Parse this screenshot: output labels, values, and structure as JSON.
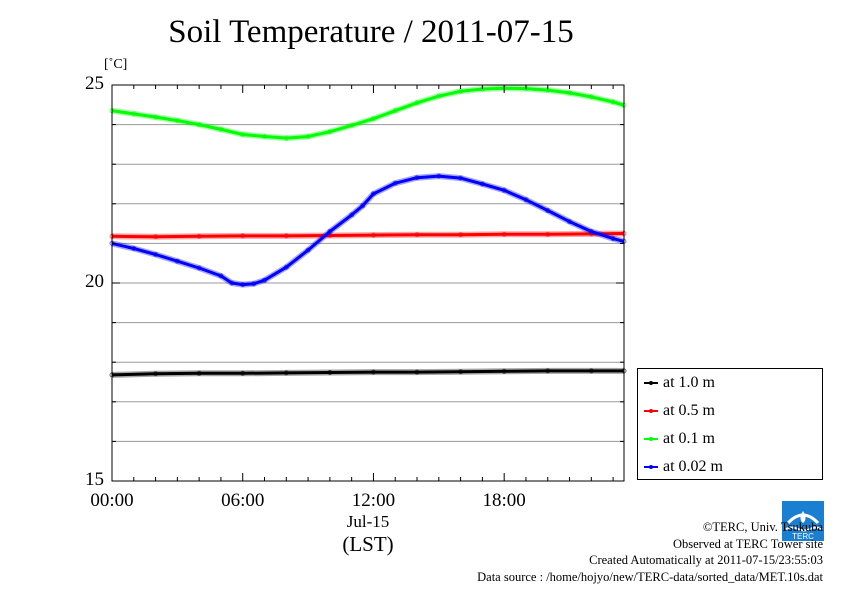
{
  "title": "Soil Temperature / 2011-07-15",
  "unit_label": "[˚C]",
  "x_date_label": "Jul-15",
  "x_zone_label": "(LST)",
  "legend_entries": [
    "at 1.0 m",
    "at 0.5 m",
    "at 0.1 m",
    "at 0.02 m"
  ],
  "credits": {
    "copyright": "©TERC, Univ. Tsukuba",
    "site": "Observed at TERC Tower site",
    "created": "Created Automatically at 2011-07-15/23:55:03",
    "source": "Data source : /home/hojyo/new/TERC-data/sorted_data/MET.10s.dat"
  },
  "logo_text": "TERC",
  "chart_data": {
    "type": "line",
    "title": "Soil Temperature / 2011-07-15",
    "xlabel": "Jul-15 (LST)",
    "ylabel": "[˚C]",
    "xlim": [
      0,
      23.5
    ],
    "ylim": [
      15,
      25
    ],
    "x_ticks": [
      0,
      6,
      12,
      18
    ],
    "x_tick_labels": [
      "00:00",
      "06:00",
      "12:00",
      "18:00"
    ],
    "y_ticks": [
      15,
      20,
      25
    ],
    "y_tick_labels": [
      "15",
      "20",
      "25"
    ],
    "grid": true,
    "legend_position": "outside-right-bottom",
    "series": [
      {
        "name": "at 1.0 m",
        "color": "#000000",
        "x": [
          0,
          2,
          4,
          6,
          8,
          10,
          12,
          14,
          16,
          18,
          20,
          22,
          23.5
        ],
        "y": [
          17.68,
          17.71,
          17.72,
          17.72,
          17.73,
          17.74,
          17.75,
          17.75,
          17.76,
          17.77,
          17.78,
          17.78,
          17.78
        ]
      },
      {
        "name": "at 0.5 m",
        "color": "#ff0000",
        "x": [
          0,
          2,
          4,
          6,
          8,
          10,
          12,
          14,
          16,
          18,
          20,
          22,
          23.5
        ],
        "y": [
          21.18,
          21.17,
          21.18,
          21.19,
          21.19,
          21.2,
          21.21,
          21.22,
          21.22,
          21.23,
          21.23,
          21.24,
          21.25
        ]
      },
      {
        "name": "at 0.1 m",
        "color": "#00ff00",
        "x": [
          0,
          1,
          2,
          3,
          4,
          5,
          6,
          7,
          8,
          9,
          10,
          11,
          12,
          13,
          14,
          15,
          16,
          17,
          18,
          19,
          20,
          21,
          22,
          23,
          23.5
        ],
        "y": [
          24.35,
          24.27,
          24.19,
          24.1,
          24.0,
          23.88,
          23.75,
          23.7,
          23.66,
          23.7,
          23.82,
          23.98,
          24.15,
          24.35,
          24.55,
          24.72,
          24.84,
          24.9,
          24.92,
          24.91,
          24.87,
          24.8,
          24.7,
          24.57,
          24.49
        ]
      },
      {
        "name": "at 0.02 m",
        "color": "#0000ff",
        "x": [
          0,
          1,
          2,
          3,
          4,
          5,
          5.5,
          6,
          6.5,
          7,
          8,
          9,
          10,
          11,
          11.5,
          12,
          13,
          14,
          15,
          16,
          17,
          18,
          19,
          20,
          21,
          22,
          23,
          23.5
        ],
        "y": [
          21.0,
          20.87,
          20.72,
          20.55,
          20.38,
          20.18,
          20.0,
          19.96,
          19.98,
          20.07,
          20.4,
          20.83,
          21.3,
          21.72,
          21.95,
          22.25,
          22.52,
          22.66,
          22.7,
          22.65,
          22.5,
          22.34,
          22.1,
          21.83,
          21.55,
          21.3,
          21.12,
          21.05
        ]
      }
    ]
  }
}
